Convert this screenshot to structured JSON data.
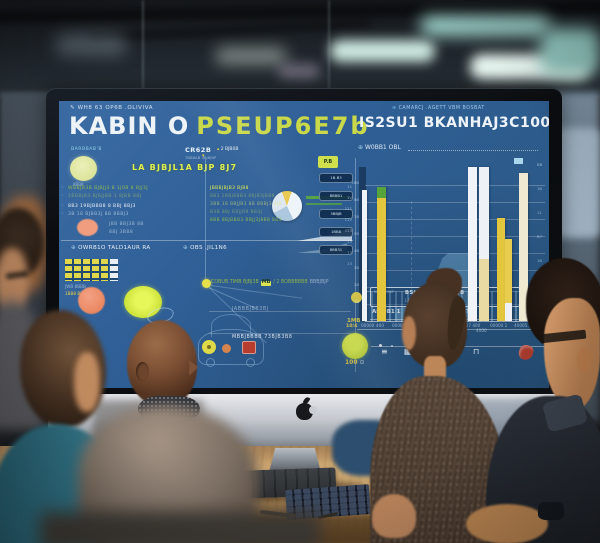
{
  "scene": {
    "description": "Five coworkers in a modern office reviewing a blue analytics dashboard shown on a large aluminium desktop monitor"
  },
  "monitor": {
    "brand_logo": "apple-logo"
  },
  "screen": {
    "icons": {
      "status_pen": "✎",
      "globe": "⊛",
      "target": "⊕",
      "bullet": "◦",
      "arrow_down": "▾",
      "marker_up": "▴",
      "dot_circle": "⊙",
      "check": "✓"
    },
    "statusbar": {
      "text": "WH8 63 OP6B .OLIVIVA"
    },
    "left_panel": {
      "title_primary": "KABIN O",
      "title_accent": "PSEUP6E7b",
      "subtitle": "BARBBAB'B",
      "metric_circle_caption": "8BB8",
      "highlight_line": "LA BJBJL1A BJP 8J7",
      "rows": [
        "WBBJB3B BJBJJ3 8 1J0B 8 BJJ3J",
        "1BBBJB3 BJBJJBB 1 8JBB 8BJ",
        "8B3 19BJBBB8 8 BBJ 8BJ3",
        "3B 18 BJBB3J 8B 8BBJ3",
        "J8B BBJ3B 8B",
        "8BJ 3BB8"
      ],
      "section_a_label": "OWRB1O TALD1AUR RA",
      "section_b_label": "OBS .JIL1N6",
      "grid_caption": "JWB 8BBB",
      "grid_caption2": "1BB8 BBJ"
    },
    "center_panel": {
      "header": "CR62B",
      "header_sub": "7BB8AB 3BJBJBP",
      "header_side": "2 BJB0B",
      "tag": "P.B",
      "pills": [
        "1B.B3",
        "BBBB1",
        "3BBJB",
        "1BB8",
        "8BB31"
      ],
      "rows": [
        "JBBBJBJB3 BJB8",
        "8B3 1BBJ8BB3 8BJB3JBB8",
        "3BB 18 BBJJB3 8B 8BBJ3 3J8",
        "B3B 8BJ BBJJB8 BB3J",
        "8BB 8BJBBB3 BBJJ3J8B8 883"
      ],
      "ticker": {
        "lead": "COBUB.TIMB BJBJ3B",
        "chip": "MB",
        "mid": "/ 2 BOBBBBBB",
        "tail": "BBBJBJP"
      },
      "note1": "JABBBJBB3BJ",
      "note2": "MBBJBBBB 73BJB3B8",
      "axis_numbers": [
        "11",
        "1V",
        "111",
        "11V",
        "113",
        "13",
        "73",
        "13"
      ]
    },
    "right_panel": {
      "header": "CAMARCJ .AGETT VBM BOSBAT",
      "title": "IS2SU1 BKANHAJ3C100",
      "series_label": "W0BB1 OBL",
      "y_labels": [
        "1BB",
        "8B",
        "7B",
        "5B",
        "4B",
        "3B",
        "2B",
        "1B"
      ],
      "x_labels": [
        "00000",
        "400",
        "00000 1.",
        "10000",
        "000007 400",
        "4000",
        "00000 1",
        "40005"
      ],
      "info_box": {
        "side": "BBBB BBBP",
        "line1": "BSIPABE MABE JB",
        "line2": "LESJIJBOS 1BJBBB"
      },
      "footer_label": "AΠ3IB1 1",
      "footer_value": "1Π1",
      "footer_small": "1MB",
      "gauge_caption": "10/4",
      "bottom_value": "100",
      "icon_glyphs": [
        "≡",
        "▦",
        "✈",
        "⚓",
        "⊓"
      ],
      "edge_numbers": [
        "BB",
        "1B",
        "11",
        "B7",
        "1B",
        "13",
        "1B",
        "B3"
      ]
    },
    "colors": {
      "screen_blue": "#2e5d94",
      "accent_yellow": "#c9d94a",
      "accent_lime": "#d9ee3e",
      "accent_orange": "#ee9270",
      "bar_white": "#eef3f7",
      "bar_yellow": "#e3c63e",
      "alert_red": "#c5402e"
    }
  },
  "chart_data": {
    "type": "bar",
    "title": "IS2SU1 BKANHAJ3C100",
    "series_label": "W0BB1 OBL",
    "categories": [
      "00000 400",
      "0000",
      "000000 400",
      "00000 1",
      "000007",
      "4000",
      "40005"
    ],
    "values": [
      85,
      87,
      100,
      100,
      67,
      53,
      96
    ],
    "bar_colors": [
      "#eef3f7",
      "#e3c63e",
      "#f0f4f8",
      "#eef2f6",
      "#e3c63e",
      "#e8cc4e",
      "#efe9d2"
    ],
    "xlabel": "",
    "ylabel": "",
    "ylim": [
      0,
      100
    ],
    "grid": true,
    "legend": false,
    "notes": "tall white/cream bars with yellow bars interleaved; cyan area ramp and hatched band overlay lower left of plot"
  }
}
